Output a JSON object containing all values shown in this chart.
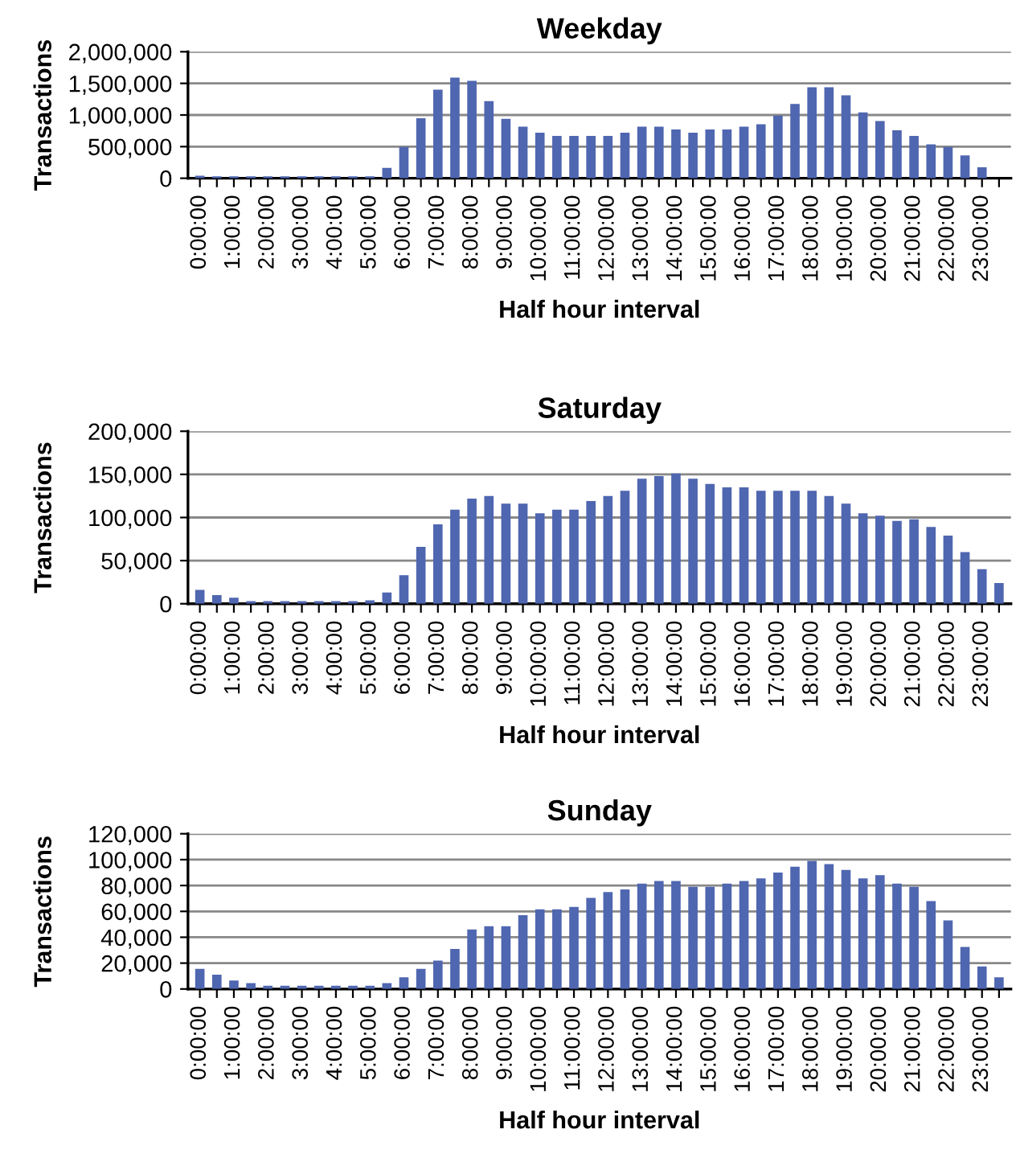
{
  "chart_data": [
    {
      "type": "bar",
      "title": "Weekday",
      "xlabel": "Half hour interval",
      "ylabel": "Transactions",
      "categories": [
        "0:00:00",
        null,
        "1:00:00",
        null,
        "2:00:00",
        null,
        "3:00:00",
        null,
        "4:00:00",
        null,
        "5:00:00",
        null,
        "6:00:00",
        null,
        "7:00:00",
        null,
        "8:00:00",
        null,
        "9:00:00",
        null,
        "10:00:00",
        null,
        "11:00:00",
        null,
        "12:00:00",
        null,
        "13:00:00",
        null,
        "14:00:00",
        null,
        "15:00:00",
        null,
        "16:00:00",
        null,
        "17:00:00",
        null,
        "18:00:00",
        null,
        "19:00:00",
        null,
        "20:00:00",
        null,
        "21:00:00",
        null,
        "22:00:00",
        null,
        "23:00:00",
        null
      ],
      "series": [
        {
          "color": "#4f66b0",
          "values": [
            40000,
            30000,
            30000,
            30000,
            30000,
            30000,
            30000,
            30000,
            30000,
            30000,
            30000,
            165000,
            495000,
            950000,
            1400000,
            1590000,
            1540000,
            1220000,
            940000,
            815000,
            720000,
            670000,
            670000,
            670000,
            670000,
            720000,
            815000,
            815000,
            770000,
            720000,
            770000,
            770000,
            815000,
            855000,
            990000,
            1175000,
            1440000,
            1440000,
            1310000,
            1040000,
            905000,
            760000,
            670000,
            535000,
            495000,
            360000,
            175000,
            null
          ]
        }
      ],
      "ylim": [
        0,
        2000000
      ],
      "yticks": [
        {
          "value": 0,
          "label": "0"
        },
        {
          "value": 500000,
          "label": "500,000"
        },
        {
          "value": 1000000,
          "label": "1,000,000"
        },
        {
          "value": 1500000,
          "label": "1,500,000"
        },
        {
          "value": 2000000,
          "label": "2,000,000"
        }
      ],
      "grid": "y"
    },
    {
      "type": "bar",
      "title": "Saturday",
      "xlabel": "Half hour interval",
      "ylabel": "Transactions",
      "categories": [
        "0:00:00",
        null,
        "1:00:00",
        null,
        "2:00:00",
        null,
        "3:00:00",
        null,
        "4:00:00",
        null,
        "5:00:00",
        null,
        "6:00:00",
        null,
        "7:00:00",
        null,
        "8:00:00",
        null,
        "9:00:00",
        null,
        "10:00:00",
        null,
        "11:00:00",
        null,
        "12:00:00",
        null,
        "13:00:00",
        null,
        "14:00:00",
        null,
        "15:00:00",
        null,
        "16:00:00",
        null,
        "17:00:00",
        null,
        "18:00:00",
        null,
        "19:00:00",
        null,
        "20:00:00",
        null,
        "21:00:00",
        null,
        "22:00:00",
        null,
        "23:00:00",
        null
      ],
      "series": [
        {
          "color": "#4f66b0",
          "values": [
            16000,
            10000,
            7000,
            3000,
            3000,
            3000,
            3000,
            3000,
            3000,
            3000,
            4000,
            13000,
            33000,
            66000,
            92000,
            109000,
            122000,
            125000,
            116000,
            116000,
            105000,
            109000,
            109000,
            119000,
            125000,
            131000,
            145000,
            148000,
            151000,
            145000,
            139000,
            135000,
            135000,
            131000,
            131000,
            131000,
            131000,
            125000,
            116000,
            105000,
            102000,
            96000,
            98000,
            89000,
            79000,
            60000,
            40000,
            24000
          ]
        }
      ],
      "ylim": [
        0,
        200000
      ],
      "yticks": [
        {
          "value": 0,
          "label": "0"
        },
        {
          "value": 50000,
          "label": "50,000"
        },
        {
          "value": 100000,
          "label": "100,000"
        },
        {
          "value": 150000,
          "label": "150,000"
        },
        {
          "value": 200000,
          "label": "200,000"
        }
      ],
      "grid": "y"
    },
    {
      "type": "bar",
      "title": "Sunday",
      "xlabel": "Half hour interval",
      "ylabel": "Transactions",
      "categories": [
        "0:00:00",
        null,
        "1:00:00",
        null,
        "2:00:00",
        null,
        "3:00:00",
        null,
        "4:00:00",
        null,
        "5:00:00",
        null,
        "6:00:00",
        null,
        "7:00:00",
        null,
        "8:00:00",
        null,
        "9:00:00",
        null,
        "10:00:00",
        null,
        "11:00:00",
        null,
        "12:00:00",
        null,
        "13:00:00",
        null,
        "14:00:00",
        null,
        "15:00:00",
        null,
        "16:00:00",
        null,
        "17:00:00",
        null,
        "18:00:00",
        null,
        "19:00:00",
        null,
        "20:00:00",
        null,
        "21:00:00",
        null,
        "22:00:00",
        null,
        "23:00:00",
        null
      ],
      "series": [
        {
          "color": "#4f66b0",
          "values": [
            15500,
            11000,
            6500,
            4500,
            2500,
            2500,
            2500,
            2500,
            2500,
            2500,
            2500,
            4500,
            9000,
            15500,
            22000,
            31000,
            46000,
            48500,
            48500,
            57000,
            61500,
            61500,
            63500,
            70500,
            75000,
            77000,
            81500,
            83500,
            83500,
            79000,
            79000,
            81500,
            83500,
            85500,
            90000,
            94500,
            99000,
            96500,
            92000,
            85500,
            88000,
            81500,
            79000,
            68000,
            53000,
            32500,
            17500,
            9000
          ]
        }
      ],
      "ylim": [
        0,
        120000
      ],
      "yticks": [
        {
          "value": 0,
          "label": "0"
        },
        {
          "value": 20000,
          "label": "20,000"
        },
        {
          "value": 40000,
          "label": "40,000"
        },
        {
          "value": 60000,
          "label": "60,000"
        },
        {
          "value": 80000,
          "label": "80,000"
        },
        {
          "value": 100000,
          "label": "100,000"
        },
        {
          "value": 120000,
          "label": "120,000"
        }
      ],
      "grid": "y"
    }
  ]
}
